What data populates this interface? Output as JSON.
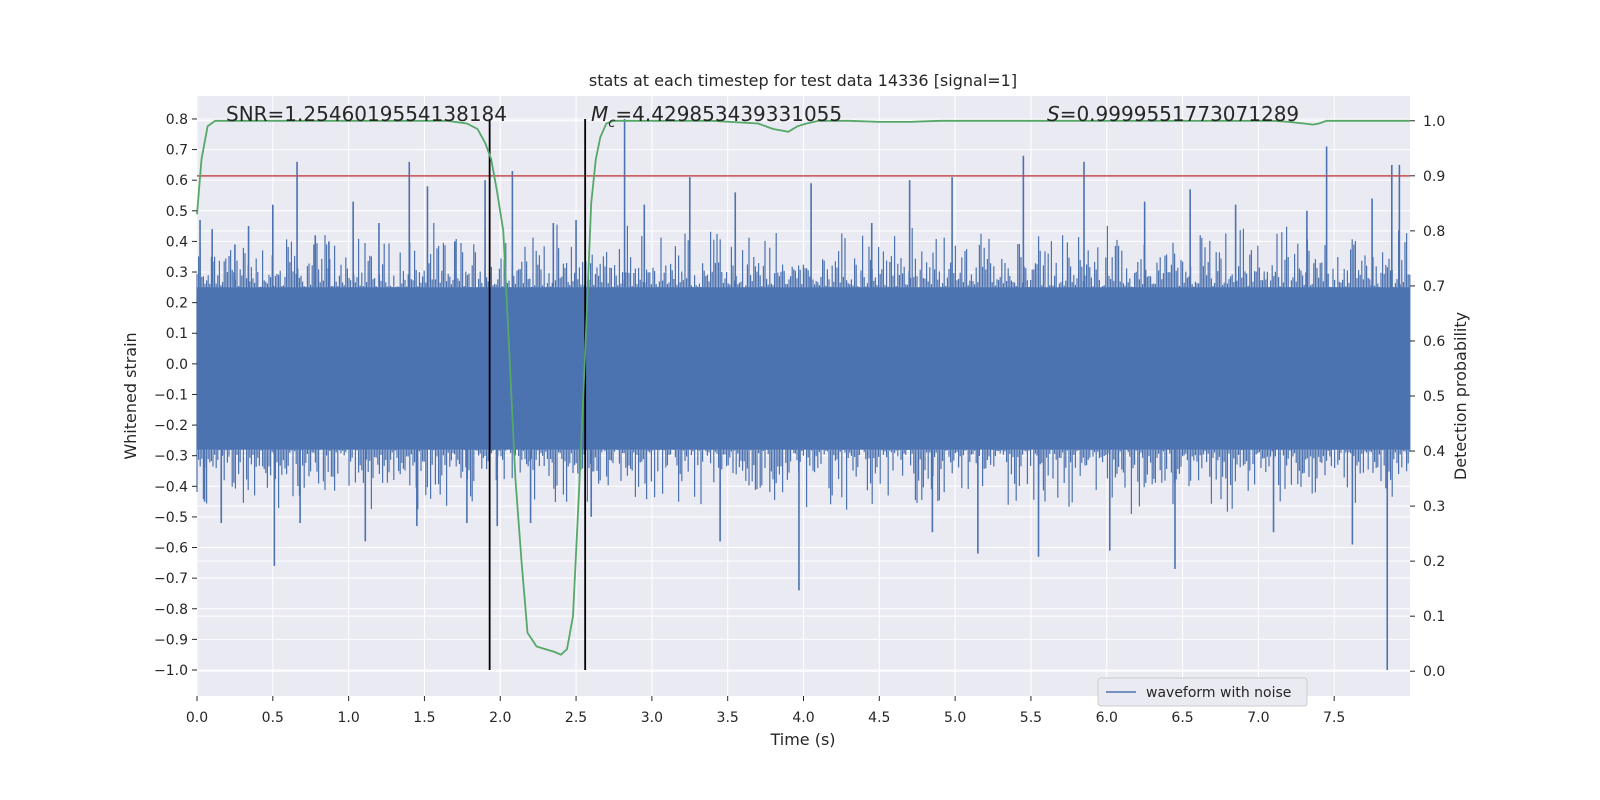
{
  "chart_data": {
    "type": "line",
    "title": "stats at each timestep for test data 14336 [signal=1]",
    "xlabel": "Time (s)",
    "ylabel": "Whitened strain",
    "ylabel_right": "Detection probability",
    "xlim": [
      0.0,
      8.0
    ],
    "ylim": [
      -1.085,
      0.875
    ],
    "ylim_right": [
      -0.045,
      1.045
    ],
    "x_ticks": [
      0.0,
      0.5,
      1.0,
      1.5,
      2.0,
      2.5,
      3.0,
      3.5,
      4.0,
      4.5,
      5.0,
      5.5,
      6.0,
      6.5,
      7.0,
      7.5
    ],
    "x_tick_labels": [
      "0.0",
      "0.5",
      "1.0",
      "1.5",
      "2.0",
      "2.5",
      "3.0",
      "3.5",
      "4.0",
      "4.5",
      "5.0",
      "5.5",
      "6.0",
      "6.5",
      "7.0",
      "7.5"
    ],
    "y_ticks": [
      -1.0,
      -0.9,
      -0.8,
      -0.7,
      -0.6,
      -0.5,
      -0.4,
      -0.3,
      -0.2,
      -0.1,
      0.0,
      0.1,
      0.2,
      0.3,
      0.4,
      0.5,
      0.6,
      0.7,
      0.8
    ],
    "y_tick_labels": [
      "−1.0",
      "−0.9",
      "−0.8",
      "−0.7",
      "−0.6",
      "−0.5",
      "−0.4",
      "−0.3",
      "−0.2",
      "−0.1",
      "0.0",
      "0.1",
      "0.2",
      "0.3",
      "0.4",
      "0.5",
      "0.6",
      "0.7",
      "0.8"
    ],
    "y_right_ticks": [
      0.0,
      0.1,
      0.2,
      0.3,
      0.4,
      0.5,
      0.6,
      0.7,
      0.8,
      0.9,
      1.0
    ],
    "y_right_tick_labels": [
      "0.0",
      "0.1",
      "0.2",
      "0.3",
      "0.4",
      "0.5",
      "0.6",
      "0.7",
      "0.8",
      "0.9",
      "1.0"
    ],
    "grid": true,
    "legend": {
      "position": "lower-right",
      "entries": [
        "waveform with noise"
      ]
    },
    "annotations": {
      "snr": "SNR=1.2546019554138184",
      "mc": "=4.429853439331055",
      "mc_symbol": "M",
      "mc_sub": "c",
      "s": "=0.9999551773071289",
      "s_symbol": "S"
    },
    "series": [
      {
        "name": "waveform with noise",
        "axis": "left",
        "color": "#4c72b0",
        "envelope": {
          "note_type": "dense noise band",
          "band_upper": 0.25,
          "band_lower": -0.28,
          "spikes": [
            {
              "x": 0.02,
              "y": 0.47
            },
            {
              "x": 0.05,
              "y": -0.45
            },
            {
              "x": 0.1,
              "y": 0.44
            },
            {
              "x": 0.16,
              "y": -0.52
            },
            {
              "x": 0.25,
              "y": 0.39
            },
            {
              "x": 0.34,
              "y": 0.45
            },
            {
              "x": 0.5,
              "y": 0.52
            },
            {
              "x": 0.51,
              "y": -0.66
            },
            {
              "x": 0.66,
              "y": 0.66
            },
            {
              "x": 0.68,
              "y": -0.52
            },
            {
              "x": 0.78,
              "y": 0.42
            },
            {
              "x": 0.87,
              "y": 0.4
            },
            {
              "x": 1.03,
              "y": 0.53
            },
            {
              "x": 1.11,
              "y": -0.58
            },
            {
              "x": 1.2,
              "y": 0.46
            },
            {
              "x": 1.4,
              "y": 0.66
            },
            {
              "x": 1.45,
              "y": -0.53
            },
            {
              "x": 1.52,
              "y": 0.58
            },
            {
              "x": 1.7,
              "y": 0.4
            },
            {
              "x": 1.78,
              "y": -0.52
            },
            {
              "x": 1.9,
              "y": 0.6
            },
            {
              "x": 1.98,
              "y": -0.53
            },
            {
              "x": 2.08,
              "y": 0.63
            },
            {
              "x": 2.2,
              "y": -0.52
            },
            {
              "x": 2.35,
              "y": 0.46
            },
            {
              "x": 2.5,
              "y": 0.47
            },
            {
              "x": 2.6,
              "y": -0.5
            },
            {
              "x": 2.82,
              "y": 0.8
            },
            {
              "x": 2.95,
              "y": 0.52
            },
            {
              "x": 3.25,
              "y": 0.61
            },
            {
              "x": 3.45,
              "y": -0.58
            },
            {
              "x": 3.55,
              "y": 0.56
            },
            {
              "x": 3.97,
              "y": -0.74
            },
            {
              "x": 4.05,
              "y": 0.59
            },
            {
              "x": 4.45,
              "y": 0.46
            },
            {
              "x": 4.7,
              "y": 0.6
            },
            {
              "x": 4.85,
              "y": -0.55
            },
            {
              "x": 4.98,
              "y": 0.61
            },
            {
              "x": 5.15,
              "y": -0.62
            },
            {
              "x": 5.45,
              "y": 0.68
            },
            {
              "x": 5.55,
              "y": -0.63
            },
            {
              "x": 5.85,
              "y": 0.66
            },
            {
              "x": 6.02,
              "y": -0.61
            },
            {
              "x": 6.25,
              "y": 0.53
            },
            {
              "x": 6.45,
              "y": -0.67
            },
            {
              "x": 6.55,
              "y": 0.57
            },
            {
              "x": 6.85,
              "y": 0.52
            },
            {
              "x": 7.1,
              "y": -0.55
            },
            {
              "x": 7.32,
              "y": 0.5
            },
            {
              "x": 7.45,
              "y": 0.71
            },
            {
              "x": 7.62,
              "y": -0.59
            },
            {
              "x": 7.75,
              "y": 0.54
            },
            {
              "x": 7.85,
              "y": -1.0
            },
            {
              "x": 7.88,
              "y": 0.65
            },
            {
              "x": 7.93,
              "y": 0.65
            },
            {
              "x": 7.95,
              "y": -0.23
            }
          ]
        }
      },
      {
        "name": "",
        "axis": "right",
        "color": "#55a868",
        "x": [
          0.0,
          0.03,
          0.07,
          0.12,
          0.18,
          0.3,
          0.5,
          0.8,
          1.1,
          1.4,
          1.65,
          1.78,
          1.85,
          1.9,
          1.94,
          1.98,
          2.02,
          2.06,
          2.1,
          2.14,
          2.18,
          2.24,
          2.3,
          2.36,
          2.4,
          2.44,
          2.48,
          2.52,
          2.56,
          2.6,
          2.63,
          2.66,
          2.7,
          2.75,
          2.82,
          2.9,
          3.1,
          3.4,
          3.7,
          3.8,
          3.9,
          3.96,
          4.02,
          4.1,
          4.2,
          4.3,
          4.5,
          4.7,
          4.9,
          5.1,
          5.4,
          5.7,
          6.0,
          6.3,
          6.6,
          6.9,
          7.1,
          7.2,
          7.3,
          7.36,
          7.4,
          7.45,
          7.6,
          7.8,
          8.0
        ],
        "y": [
          0.83,
          0.93,
          0.99,
          1.0,
          1.0,
          1.0,
          1.0,
          1.0,
          1.0,
          1.0,
          1.0,
          0.995,
          0.985,
          0.96,
          0.93,
          0.87,
          0.8,
          0.58,
          0.35,
          0.2,
          0.07,
          0.045,
          0.04,
          0.035,
          0.03,
          0.04,
          0.1,
          0.33,
          0.58,
          0.85,
          0.93,
          0.97,
          0.995,
          1.0,
          1.0,
          1.0,
          1.0,
          1.0,
          0.995,
          0.985,
          0.98,
          0.99,
          0.995,
          1.0,
          1.0,
          1.0,
          0.998,
          0.998,
          1.0,
          1.0,
          1.0,
          1.0,
          1.0,
          1.0,
          1.0,
          1.0,
          1.0,
          0.998,
          0.995,
          0.993,
          0.995,
          1.0,
          1.0,
          1.0,
          1.0
        ]
      }
    ],
    "threshold": {
      "axis": "right",
      "y": 0.9,
      "color": "#c44e52"
    },
    "vlines": [
      {
        "x": 1.93,
        "y0": -1.0,
        "y1": 0.8,
        "color": "#000000"
      },
      {
        "x": 2.56,
        "y0": -1.0,
        "y1": 0.8,
        "color": "#000000"
      }
    ],
    "colors": {
      "background": "#eaeaf2",
      "grid": "#ffffff",
      "text": "#262626"
    }
  }
}
